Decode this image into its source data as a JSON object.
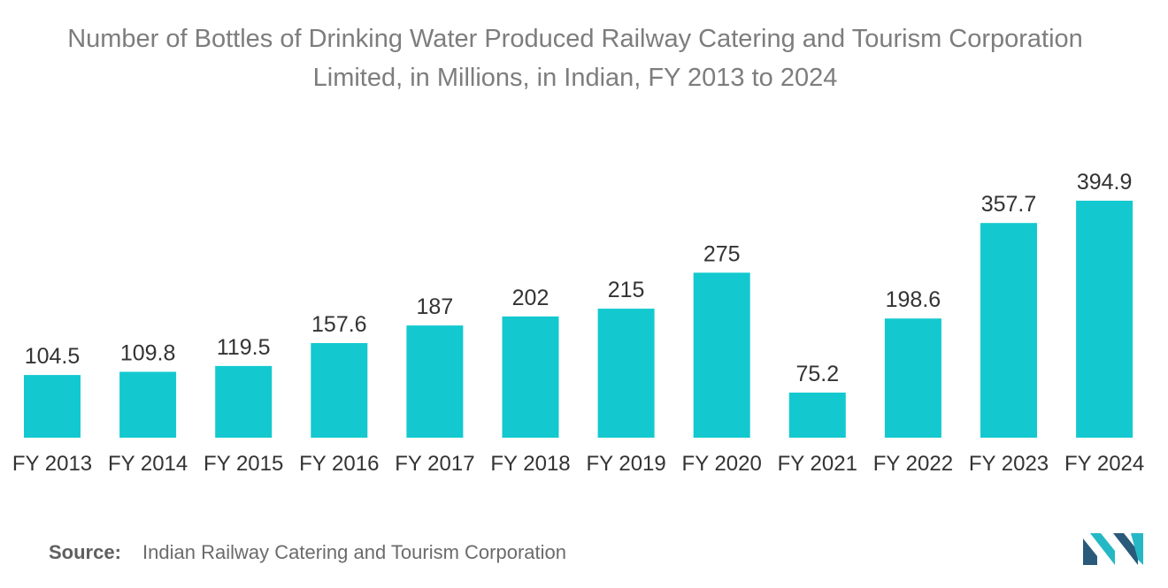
{
  "chart_data": {
    "type": "bar",
    "title_lines": [
      "Number of Bottles of Drinking Water Produced Railway Catering and Tourism Corporation",
      "Limited, in Millions, in Indian, FY 2013 to 2024"
    ],
    "categories": [
      "FY 2013",
      "FY 2014",
      "FY 2015",
      "FY 2016",
      "FY 2017",
      "FY 2018",
      "FY 2019",
      "FY 2020",
      "FY 2021",
      "FY 2022",
      "FY 2023",
      "FY 2024"
    ],
    "values": [
      104.5,
      109.8,
      119.5,
      157.6,
      187,
      202,
      215,
      275,
      75.2,
      198.6,
      357.7,
      394.9
    ],
    "value_labels": [
      "104.5",
      "109.8",
      "119.5",
      "157.6",
      "187",
      "202",
      "215",
      "275",
      "75.2",
      "198.6",
      "357.7",
      "394.9"
    ],
    "xlabel": "",
    "ylabel": "",
    "ylim": [
      0,
      394.9
    ],
    "grid": false,
    "bar_color": "#13c9cf"
  },
  "source": {
    "label": "Source:",
    "text": "Indian Railway Catering and Tourism Corporation"
  },
  "logo": {
    "icon": "mordor-intelligence-logo-icon",
    "color_dark": "#2a5a7a",
    "color_light": "#25b8c4"
  }
}
